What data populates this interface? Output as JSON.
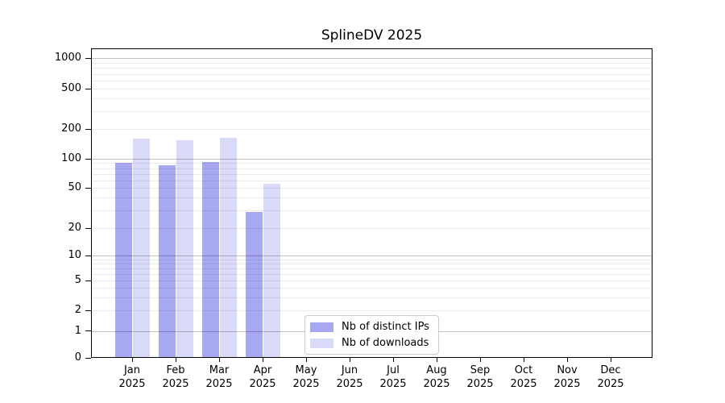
{
  "title": "SplineDV 2025",
  "legend": {
    "items": [
      {
        "label": "Nb of distinct IPs",
        "color": "#a8a8f2"
      },
      {
        "label": "Nb of downloads",
        "color": "#d9d9f8"
      }
    ]
  },
  "chart_data": {
    "type": "bar",
    "title": "SplineDV 2025",
    "categories": [
      "Jan",
      "Feb",
      "Mar",
      "Apr",
      "May",
      "Jun",
      "Jul",
      "Aug",
      "Sep",
      "Oct",
      "Nov",
      "Dec"
    ],
    "x_tick_year": "2025",
    "series": [
      {
        "name": "Nb of distinct IPs",
        "color": "#a8a8f2",
        "values": [
          91,
          85,
          93,
          29,
          0,
          0,
          0,
          0,
          0,
          0,
          0,
          0
        ]
      },
      {
        "name": "Nb of downloads",
        "color": "#d9d9f8",
        "values": [
          161,
          153,
          163,
          55,
          0,
          0,
          0,
          0,
          0,
          0,
          0,
          0
        ]
      }
    ],
    "xlabel": "",
    "ylabel": "",
    "yscale": "symlog",
    "ytick_labels": [
      1000,
      500,
      200,
      100,
      50,
      20,
      10,
      5,
      2,
      1,
      0
    ],
    "ylim": [
      0,
      1250
    ],
    "grid": true,
    "legend_position": "lower center inside"
  }
}
